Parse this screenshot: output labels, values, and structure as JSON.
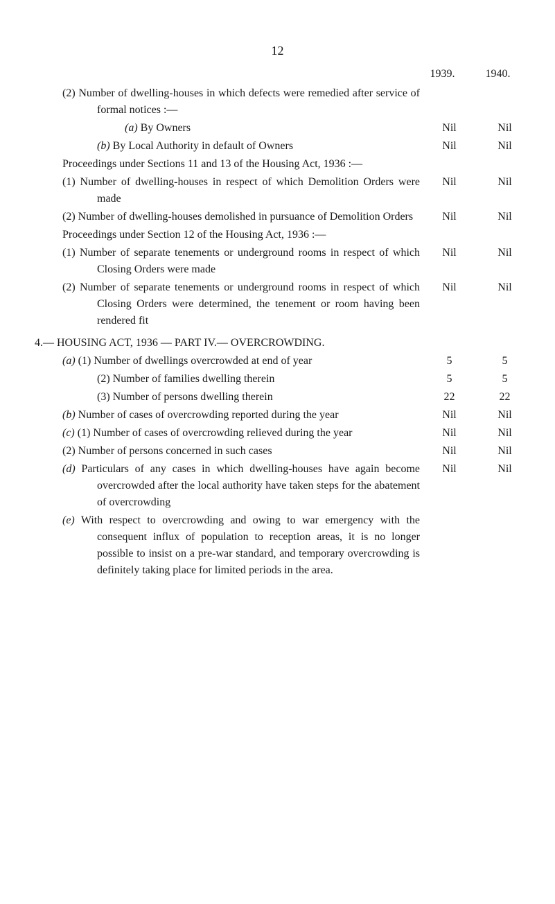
{
  "page_number": "12",
  "years": {
    "col1": "1939.",
    "col2": "1940."
  },
  "rows": [
    {
      "text": "(2) Number of dwelling-houses in which defects were remedied after service of formal notices :—",
      "indent": "hanging-num",
      "v1": "",
      "v2": ""
    },
    {
      "text_prefix": "(a)",
      "text": " By Owners",
      "indent": "indent-3",
      "italic_prefix": true,
      "v1": "Nil",
      "v2": "Nil"
    },
    {
      "text_prefix": "(b)",
      "text": " By Local Authority in default of Owners",
      "indent": "hanging-2",
      "italic_prefix": true,
      "v1": "Nil",
      "v2": "Nil"
    },
    {
      "text": "Proceedings under Sections 11 and 13 of the Housing Act, 1936 :—",
      "indent": "hanging-1",
      "v1": "",
      "v2": ""
    },
    {
      "text": "(1) Number of dwelling-houses in respect of which Demolition Orders were made",
      "indent": "hanging-num",
      "v1": "Nil",
      "v2": "Nil"
    },
    {
      "text": "(2) Number of dwelling-houses demolished in pursuance of Demolition Orders",
      "indent": "hanging-num",
      "v1": "Nil",
      "v2": "Nil"
    },
    {
      "text": "Proceedings under Section 12 of the Housing Act, 1936 :—",
      "indent": "hanging-1",
      "v1": "",
      "v2": ""
    },
    {
      "text": "(1) Number of separate tenements or underground rooms in respect of which Closing Orders were made",
      "indent": "hanging-num",
      "v1": "Nil",
      "v2": "Nil"
    },
    {
      "text": "(2) Number of separate tenements or underground rooms in respect of which Closing Orders were determined, the tenement or room having been rendered fit",
      "indent": "hanging-num",
      "v1": "Nil",
      "v2": "Nil"
    },
    {
      "text": "4.— HOUSING ACT, 1936 — PART IV.— OVERCROWDING.",
      "indent": "section-heading",
      "small_caps": true,
      "v1": "",
      "v2": ""
    },
    {
      "text_prefix": "(a)",
      "text": " (1) Number of dwellings overcrowded at end of year",
      "indent": "hanging-num",
      "italic_prefix": true,
      "v1": "5",
      "v2": "5"
    },
    {
      "text": "(2) Number of families dwelling therein",
      "indent": "indent-2",
      "v1": "5",
      "v2": "5"
    },
    {
      "text": "(3) Number of persons dwelling therein",
      "indent": "indent-2",
      "v1": "22",
      "v2": "22"
    },
    {
      "text_prefix": "(b)",
      "text": " Number of cases of overcrowding reported during the year",
      "indent": "hanging-num",
      "italic_prefix": true,
      "v1": "Nil",
      "v2": "Nil"
    },
    {
      "text_prefix": "(c)",
      "text": " (1) Number of cases of overcrowding relieved during the year",
      "indent": "hanging-num",
      "italic_prefix": true,
      "v1": "Nil",
      "v2": "Nil"
    },
    {
      "text": "(2) Number of persons concerned in such cases",
      "indent": "hanging-num",
      "v1": "Nil",
      "v2": "Nil"
    },
    {
      "text_prefix": "(d)",
      "text": " Particulars of any cases in which dwelling-houses have again become overcrowded after the local authority have taken steps for the abatement of overcrowding",
      "indent": "hanging-num",
      "italic_prefix": true,
      "v1": "Nil",
      "v2": "Nil"
    },
    {
      "text_prefix": "(e)",
      "text": " With respect to overcrowding and owing to war emergency with the consequent influx of population to reception areas, it is no longer possible to insist on a pre-war standard, and temporary overcrowding is definitely taking place for limited periods in the area.",
      "indent": "last-row",
      "italic_prefix": true,
      "v1": "",
      "v2": ""
    }
  ]
}
